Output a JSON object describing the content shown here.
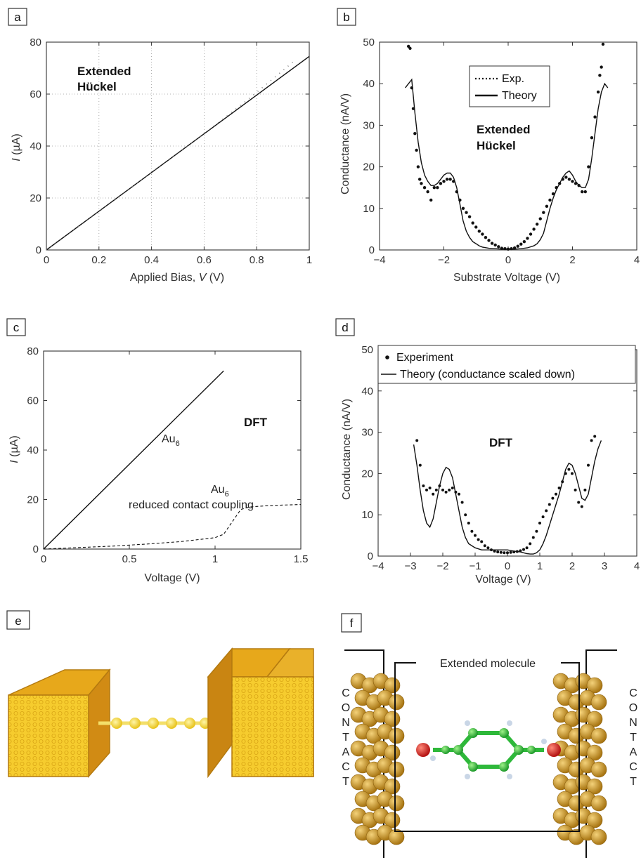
{
  "panels": {
    "a": {
      "label": "a",
      "annotation": [
        "Extended",
        "Hückel"
      ],
      "xlabel_prefix": "Applied Bias, ",
      "xlabel_var": "V",
      "xlabel_suffix": " (V)",
      "ylabel_var": "I",
      "ylabel_suffix": " (µA)"
    },
    "b": {
      "label": "b",
      "annotation": [
        "Extended",
        "Hückel"
      ],
      "xlabel": "Substrate Voltage (V)",
      "ylabel": "Conductance (nA/V)",
      "legend": [
        "Exp.",
        "Theory"
      ]
    },
    "c": {
      "label": "c",
      "annotation": "DFT",
      "xlabel": "Voltage (V)",
      "ylabel_var": "I",
      "ylabel_suffix": " (µA)",
      "curve_label_1": "Au",
      "curve_label_1_sub": "6",
      "curve_label_2": "Au",
      "curve_label_2_sub": "6",
      "curve_label_2_line2": "reduced contact coupling"
    },
    "d": {
      "label": "d",
      "annotation": "DFT",
      "xlabel": "Voltage (V)",
      "ylabel": "Conductance (nA/V)",
      "legend": [
        "Experiment",
        "Theory (conductance scaled down)"
      ]
    },
    "e": {
      "label": "e"
    },
    "f": {
      "label": "f",
      "box_title": "Extended molecule",
      "contact_text": "CONTACT"
    }
  },
  "chart_data": [
    {
      "id": "a",
      "type": "line",
      "xlim": [
        0,
        1
      ],
      "ylim": [
        0,
        80
      ],
      "xticks": [
        "0",
        "0.2",
        "0.4",
        "0.6",
        "0.8",
        "1"
      ],
      "yticks": [
        "0",
        "20",
        "40",
        "60",
        "80"
      ],
      "grid": true,
      "series": [
        {
          "style": "solid",
          "x": [
            0,
            1
          ],
          "y": [
            0,
            74.5
          ]
        },
        {
          "style": "dotted",
          "x": [
            0,
            0.1,
            0.2,
            0.3,
            0.4,
            0.5,
            0.6,
            0.7,
            0.75,
            0.8,
            0.85,
            0.9,
            0.95
          ],
          "y": [
            0,
            7.4,
            14.8,
            22.3,
            29.8,
            37.2,
            44.8,
            52.6,
            56.6,
            60.7,
            64.9,
            69.1,
            73.4
          ]
        }
      ]
    },
    {
      "id": "b",
      "type": "scatter",
      "xlim": [
        -4,
        4
      ],
      "ylim": [
        0,
        50
      ],
      "xticks": [
        "−4",
        "−2",
        "0",
        "2",
        "4"
      ],
      "yticks": [
        "0",
        "10",
        "20",
        "30",
        "40",
        "50"
      ],
      "grid": false,
      "legend_position": "top-right",
      "series": [
        {
          "style": "points",
          "x": [
            -3.1,
            -3.05,
            -3.0,
            -2.95,
            -2.9,
            -2.85,
            -2.8,
            -2.75,
            -2.7,
            -2.6,
            -2.5,
            -2.4,
            -2.3,
            -2.2,
            -2.1,
            -2.0,
            -1.9,
            -1.8,
            -1.7,
            -1.6,
            -1.5,
            -1.4,
            -1.3,
            -1.2,
            -1.1,
            -1.0,
            -0.9,
            -0.8,
            -0.7,
            -0.6,
            -0.5,
            -0.4,
            -0.3,
            -0.2,
            -0.1,
            0.0,
            0.1,
            0.2,
            0.3,
            0.4,
            0.5,
            0.6,
            0.7,
            0.8,
            0.9,
            1.0,
            1.1,
            1.2,
            1.3,
            1.4,
            1.5,
            1.6,
            1.7,
            1.8,
            1.9,
            2.0,
            2.1,
            2.2,
            2.3,
            2.4,
            2.5,
            2.6,
            2.7,
            2.8,
            2.85,
            2.9,
            2.95
          ],
          "y": [
            49,
            48.5,
            39,
            34,
            28,
            24,
            20,
            17,
            16,
            15,
            14,
            12,
            15,
            15,
            16,
            16.5,
            17,
            17,
            16.5,
            14,
            12,
            10,
            9,
            8,
            6.5,
            5.5,
            4.5,
            3.8,
            3,
            2.3,
            1.6,
            1.2,
            0.8,
            0.4,
            0.3,
            0.2,
            0.3,
            0.5,
            0.9,
            1.4,
            2,
            2.8,
            3.8,
            5,
            6.2,
            7.5,
            9,
            10.5,
            12,
            13.5,
            15,
            16,
            17,
            17.5,
            17,
            16.5,
            16,
            15.5,
            14,
            14,
            20,
            27,
            32,
            38,
            42,
            44,
            49.5
          ]
        },
        {
          "style": "solid",
          "x": [
            -3.2,
            -3.1,
            -3.0,
            -2.9,
            -2.8,
            -2.7,
            -2.6,
            -2.5,
            -2.4,
            -2.3,
            -2.2,
            -2.1,
            -2.0,
            -1.9,
            -1.8,
            -1.7,
            -1.6,
            -1.5,
            -1.4,
            -1.3,
            -1.2,
            -1.1,
            -1.0,
            -0.9,
            -0.8,
            -0.6,
            -0.4,
            -0.2,
            0.0,
            0.2,
            0.4,
            0.6,
            0.8,
            0.9,
            1.0,
            1.1,
            1.2,
            1.3,
            1.4,
            1.5,
            1.6,
            1.7,
            1.8,
            1.9,
            2.0,
            2.1,
            2.2,
            2.3,
            2.4,
            2.5,
            2.6,
            2.7,
            2.8,
            2.9,
            3.0,
            3.1
          ],
          "y": [
            39,
            40,
            41,
            33,
            26,
            21,
            18,
            16.5,
            15.5,
            15.5,
            16,
            17,
            18,
            18.5,
            18.5,
            17.5,
            15,
            11,
            7,
            4.5,
            3,
            2,
            1.5,
            1,
            0.7,
            0.4,
            0.3,
            0.2,
            0.2,
            0.2,
            0.3,
            0.5,
            1,
            1.5,
            2.5,
            4,
            7,
            10,
            12.5,
            14.5,
            16,
            17.5,
            18.5,
            19,
            18,
            16.5,
            15.5,
            15,
            15,
            17,
            22,
            28,
            34,
            38,
            40,
            39
          ]
        }
      ]
    },
    {
      "id": "c",
      "type": "line",
      "xlim": [
        0,
        1.5
      ],
      "ylim": [
        0,
        80
      ],
      "xticks": [
        "0",
        "0.5",
        "1",
        "1.5"
      ],
      "yticks": [
        "0",
        "20",
        "40",
        "60",
        "80"
      ],
      "grid": false,
      "series": [
        {
          "style": "solid",
          "x": [
            0,
            1.05
          ],
          "y": [
            0,
            72
          ]
        },
        {
          "style": "dashed",
          "x": [
            0,
            0.2,
            0.4,
            0.6,
            0.8,
            1.0,
            1.05,
            1.1,
            1.15,
            1.2,
            1.3,
            1.4,
            1.5
          ],
          "y": [
            0,
            0.6,
            1.2,
            2,
            3,
            4.6,
            6,
            11,
            16,
            17,
            17.5,
            17.8,
            18
          ]
        }
      ]
    },
    {
      "id": "d",
      "type": "scatter",
      "xlim": [
        -4,
        4
      ],
      "ylim": [
        0,
        50
      ],
      "xticks": [
        "−4",
        "−3",
        "−2",
        "−1",
        "0",
        "1",
        "2",
        "3",
        "4"
      ],
      "yticks": [
        "0",
        "10",
        "20",
        "30",
        "40",
        "50"
      ],
      "grid": false,
      "legend_position": "top",
      "series": [
        {
          "style": "points",
          "x": [
            -2.8,
            -2.7,
            -2.6,
            -2.5,
            -2.4,
            -2.3,
            -2.2,
            -2.1,
            -2.0,
            -1.9,
            -1.8,
            -1.7,
            -1.6,
            -1.5,
            -1.4,
            -1.3,
            -1.2,
            -1.1,
            -1.0,
            -0.9,
            -0.8,
            -0.7,
            -0.6,
            -0.5,
            -0.4,
            -0.3,
            -0.2,
            -0.1,
            0.0,
            0.1,
            0.2,
            0.3,
            0.4,
            0.5,
            0.6,
            0.7,
            0.8,
            0.9,
            1.0,
            1.1,
            1.2,
            1.3,
            1.4,
            1.5,
            1.6,
            1.7,
            1.8,
            1.9,
            2.0,
            2.1,
            2.2,
            2.3,
            2.4,
            2.5,
            2.6,
            2.7
          ],
          "y": [
            28,
            22,
            17,
            16,
            16.5,
            15,
            16,
            17,
            16,
            15.5,
            16,
            16.5,
            15.5,
            15,
            13,
            10,
            8,
            6,
            5,
            4,
            3.5,
            2.5,
            2,
            1.5,
            1.2,
            1,
            0.9,
            0.8,
            0.8,
            0.9,
            1,
            1.1,
            1.3,
            1.6,
            2,
            3,
            4.5,
            6,
            8,
            9.5,
            11,
            12.5,
            14,
            15,
            16.5,
            18,
            20,
            21,
            20,
            16,
            13,
            12,
            16,
            22,
            28,
            29
          ]
        },
        {
          "style": "solid",
          "x": [
            -2.9,
            -2.8,
            -2.7,
            -2.6,
            -2.5,
            -2.4,
            -2.3,
            -2.2,
            -2.1,
            -2.0,
            -1.9,
            -1.8,
            -1.7,
            -1.6,
            -1.5,
            -1.4,
            -1.3,
            -1.2,
            -1.0,
            -0.8,
            -0.6,
            -0.4,
            -0.2,
            0.0,
            0.2,
            0.4,
            0.5,
            0.6,
            0.7,
            0.8,
            0.9,
            1.0,
            1.1,
            1.2,
            1.3,
            1.4,
            1.5,
            1.6,
            1.7,
            1.8,
            1.9,
            2.0,
            2.1,
            2.2,
            2.3,
            2.4,
            2.5,
            2.6,
            2.7,
            2.8,
            2.9
          ],
          "y": [
            27,
            22,
            16,
            11,
            8,
            7,
            9,
            13,
            17,
            20,
            21.5,
            21,
            19,
            15,
            11,
            7,
            4.5,
            3,
            2,
            1.5,
            1.5,
            1.5,
            1.5,
            1.5,
            1.2,
            1,
            0.8,
            0.6,
            0.5,
            0.5,
            0.8,
            1.5,
            3,
            5,
            7.5,
            10,
            12.5,
            15,
            18,
            21,
            22.5,
            22,
            20,
            17,
            14,
            13.5,
            15,
            19,
            23,
            26,
            28
          ]
        }
      ]
    }
  ]
}
